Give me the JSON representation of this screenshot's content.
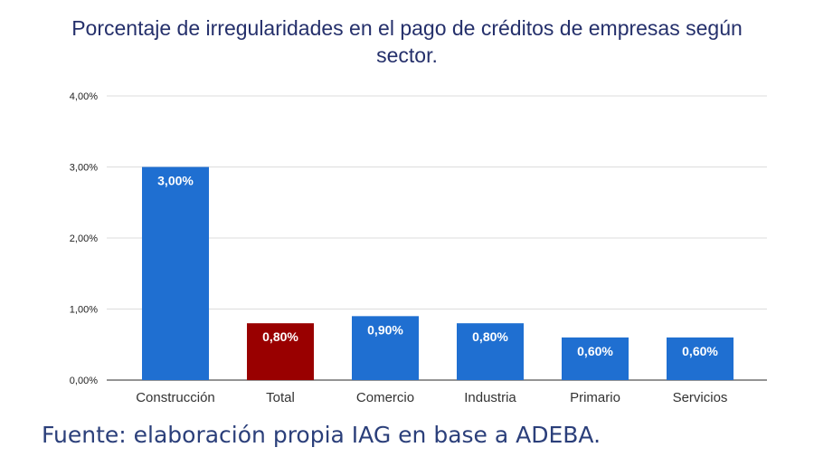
{
  "chart_data": {
    "type": "bar",
    "title": "Porcentaje de irregularidades en el pago de créditos de empresas según sector.",
    "categories": [
      "Construcción",
      "Total",
      "Comercio",
      "Industria",
      "Primario",
      "Servicios"
    ],
    "values": [
      3.0,
      0.8,
      0.9,
      0.8,
      0.6,
      0.6
    ],
    "data_labels": [
      "3,00%",
      "0,80%",
      "0,90%",
      "0,80%",
      "0,60%",
      "0,60%"
    ],
    "bar_colors": [
      "#1f6fd1",
      "#990000",
      "#1f6fd1",
      "#1f6fd1",
      "#1f6fd1",
      "#1f6fd1"
    ],
    "ylim": [
      0,
      4
    ],
    "yticks": [
      0,
      1,
      2,
      3,
      4
    ],
    "ytick_labels": [
      "0,00%",
      "1,00%",
      "2,00%",
      "3,00%",
      "4,00%"
    ],
    "xlabel": "",
    "ylabel": "",
    "grid": true,
    "legend": "none"
  },
  "source": "Fuente: elaboración propia IAG en base a ADEBA."
}
